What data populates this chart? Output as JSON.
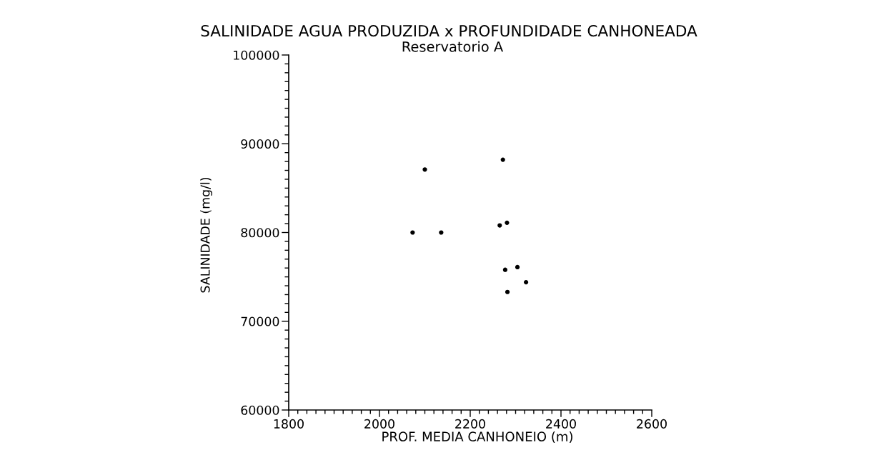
{
  "chart_data": {
    "type": "scatter",
    "title": "SALINIDADE AGUA PRODUZIDA x PROFUNDIDADE CANHONEADA",
    "subtitle": "Reservatorio A",
    "xlabel": "PROF. MEDIA CANHONEIO (m)",
    "ylabel": "SALINIDADE (mg/l)",
    "x": [
      2100,
      2272,
      2073,
      2136,
      2265,
      2281,
      2277,
      2304,
      2323,
      2282
    ],
    "values": [
      87100,
      88200,
      80000,
      80000,
      80800,
      81100,
      75800,
      76100,
      74400,
      73300
    ],
    "color": "#000000",
    "marker": "circle",
    "xlim": [
      1800,
      2600
    ],
    "ylim": [
      60000,
      100000
    ],
    "xticks": [
      1800,
      {
        "value": 1820,
        "label": null
      },
      {
        "value": 1840,
        "label": null
      },
      {
        "value": 1860,
        "label": null
      },
      {
        "value": 1880,
        "label": null
      },
      {
        "value": 1900,
        "label": null
      },
      {
        "value": 1920,
        "label": null
      },
      {
        "value": 1940,
        "label": null
      },
      {
        "value": 1960,
        "label": null
      },
      {
        "value": 1980,
        "label": null
      },
      2000,
      {
        "value": 2020,
        "label": null
      },
      {
        "value": 2040,
        "label": null
      },
      {
        "value": 2060,
        "label": null
      },
      {
        "value": 2080,
        "label": null
      },
      {
        "value": 2100,
        "label": null
      },
      {
        "value": 2120,
        "label": null
      },
      {
        "value": 2140,
        "label": null
      },
      {
        "value": 2160,
        "label": null
      },
      {
        "value": 2180,
        "label": null
      },
      2200,
      {
        "value": 2220,
        "label": null
      },
      {
        "value": 2240,
        "label": null
      },
      {
        "value": 2260,
        "label": null
      },
      {
        "value": 2280,
        "label": null
      },
      {
        "value": 2300,
        "label": null
      },
      {
        "value": 2320,
        "label": null
      },
      {
        "value": 2340,
        "label": null
      },
      {
        "value": 2360,
        "label": null
      },
      {
        "value": 2380,
        "label": null
      },
      2400,
      {
        "value": 2420,
        "label": null
      },
      {
        "value": 2440,
        "label": null
      },
      {
        "value": 2460,
        "label": null
      },
      {
        "value": 2480,
        "label": null
      },
      {
        "value": 2500,
        "label": null
      },
      {
        "value": 2520,
        "label": null
      },
      {
        "value": 2540,
        "label": null
      },
      {
        "value": 2560,
        "label": null
      },
      {
        "value": 2580,
        "label": null
      },
      2600
    ],
    "yticks": [
      60000,
      {
        "value": 61000,
        "label": null
      },
      {
        "value": 62000,
        "label": null
      },
      {
        "value": 63000,
        "label": null
      },
      {
        "value": 64000,
        "label": null
      },
      {
        "value": 65000,
        "label": null
      },
      {
        "value": 66000,
        "label": null
      },
      {
        "value": 67000,
        "label": null
      },
      {
        "value": 68000,
        "label": null
      },
      {
        "value": 69000,
        "label": null
      },
      70000,
      {
        "value": 71000,
        "label": null
      },
      {
        "value": 72000,
        "label": null
      },
      {
        "value": 73000,
        "label": null
      },
      {
        "value": 74000,
        "label": null
      },
      {
        "value": 75000,
        "label": null
      },
      {
        "value": 76000,
        "label": null
      },
      {
        "value": 77000,
        "label": null
      },
      {
        "value": 78000,
        "label": null
      },
      {
        "value": 79000,
        "label": null
      },
      80000,
      {
        "value": 81000,
        "label": null
      },
      {
        "value": 82000,
        "label": null
      },
      {
        "value": 83000,
        "label": null
      },
      {
        "value": 84000,
        "label": null
      },
      {
        "value": 85000,
        "label": null
      },
      {
        "value": 86000,
        "label": null
      },
      {
        "value": 87000,
        "label": null
      },
      {
        "value": 88000,
        "label": null
      },
      {
        "value": 89000,
        "label": null
      },
      90000,
      {
        "value": 91000,
        "label": null
      },
      {
        "value": 92000,
        "label": null
      },
      {
        "value": 93000,
        "label": null
      },
      {
        "value": 94000,
        "label": null
      },
      {
        "value": 95000,
        "label": null
      },
      {
        "value": 96000,
        "label": null
      },
      {
        "value": 97000,
        "label": null
      },
      {
        "value": 98000,
        "label": null
      },
      {
        "value": 99000,
        "label": null
      },
      100000
    ]
  }
}
